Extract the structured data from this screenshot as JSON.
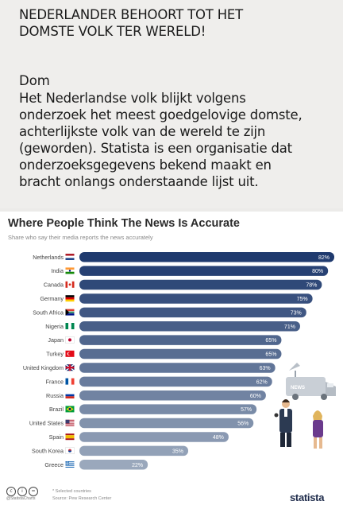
{
  "post": {
    "headline": "NEDERLANDER BEHOORT TOT HET\nDOMSTE VOLK TER WERELD!",
    "title": "Dom",
    "body": "Het Nederlandse volk blijkt volgens\nonderzoek het meest goedgelovige domste,\nachterlijkste volk van de wereld te zijn\n(geworden). Statista is een organisatie dat\nonderzoeksgegevens bekend maakt en\nbracht onlangs onderstaande lijst uit."
  },
  "footer": {
    "footnote": "* Selected countries",
    "source": "Source: Pew Research Center",
    "handle": "@StatistaCharts",
    "brand": "statista",
    "news_van_text": "NEWS"
  },
  "colors": {
    "bar_dark": "#1f3a6e",
    "bar_light": "#9aa8bc",
    "background": "#efeeec"
  },
  "chart_data": {
    "type": "bar",
    "orientation": "horizontal",
    "title": "Where People Think The News Is Accurate",
    "subtitle": "Share who say their media reports the news accurately",
    "xlim": [
      0,
      100
    ],
    "categories": [
      "Netherlands",
      "India",
      "Canada",
      "Germany",
      "South Africa",
      "Nigeria",
      "Japan",
      "Turkey",
      "United Kingdom",
      "France",
      "Russia",
      "Brazil",
      "United States",
      "Spain",
      "South Korea",
      "Greece"
    ],
    "values": [
      82,
      80,
      78,
      75,
      73,
      71,
      65,
      65,
      63,
      62,
      60,
      57,
      56,
      48,
      35,
      22
    ],
    "value_labels": [
      "82%",
      "80%",
      "78%",
      "75%",
      "73%",
      "71%",
      "65%",
      "65%",
      "63%",
      "62%",
      "60%",
      "57%",
      "56%",
      "48%",
      "35%",
      "22%"
    ],
    "flags": [
      "netherlands-flag",
      "india-flag",
      "canada-flag",
      "germany-flag",
      "south-africa-flag",
      "nigeria-flag",
      "japan-flag",
      "turkey-flag",
      "united-kingdom-flag",
      "france-flag",
      "russia-flag",
      "brazil-flag",
      "united-states-flag",
      "spain-flag",
      "south-korea-flag",
      "greece-flag"
    ]
  }
}
